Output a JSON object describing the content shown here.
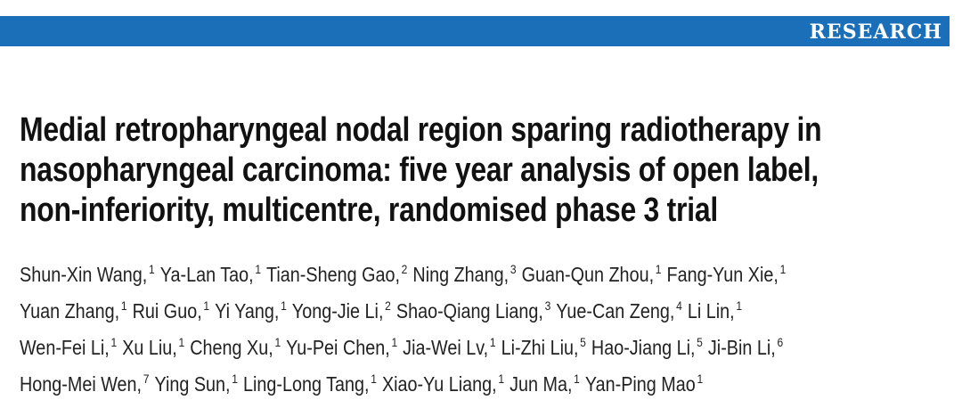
{
  "banner": "RESEARCH",
  "title_lines": [
    "Medial retropharyngeal nodal region sparing radiotherapy in",
    "nasopharyngeal carcinoma: five year analysis of open label,",
    "non-inferiority, multicentre, randomised phase 3 trial"
  ],
  "author_lines": [
    [
      {
        "name": "Shun-Xin Wang,",
        "aff": 1
      },
      {
        "name": "Ya-Lan Tao,",
        "aff": 1
      },
      {
        "name": "Tian-Sheng Gao,",
        "aff": 2
      },
      {
        "name": "Ning Zhang,",
        "aff": 3
      },
      {
        "name": "Guan-Qun Zhou,",
        "aff": 1
      },
      {
        "name": "Fang-Yun Xie,",
        "aff": 1
      }
    ],
    [
      {
        "name": "Yuan Zhang,",
        "aff": 1
      },
      {
        "name": "Rui Guo,",
        "aff": 1
      },
      {
        "name": "Yi Yang,",
        "aff": 1
      },
      {
        "name": "Yong-Jie Li,",
        "aff": 2
      },
      {
        "name": "Shao-Qiang Liang,",
        "aff": 3
      },
      {
        "name": "Yue-Can Zeng,",
        "aff": 4
      },
      {
        "name": "Li Lin,",
        "aff": 1
      }
    ],
    [
      {
        "name": "Wen-Fei Li,",
        "aff": 1
      },
      {
        "name": "Xu Liu,",
        "aff": 1
      },
      {
        "name": "Cheng Xu,",
        "aff": 1
      },
      {
        "name": "Yu-Pei Chen,",
        "aff": 1
      },
      {
        "name": "Jia-Wei Lv,",
        "aff": 1
      },
      {
        "name": "Li-Zhi Liu,",
        "aff": 5
      },
      {
        "name": "Hao-Jiang Li,",
        "aff": 5
      },
      {
        "name": "Ji-Bin Li,",
        "aff": 6
      }
    ],
    [
      {
        "name": "Hong-Mei Wen,",
        "aff": 7
      },
      {
        "name": "Ying Sun,",
        "aff": 1
      },
      {
        "name": "Ling-Long Tang,",
        "aff": 1
      },
      {
        "name": "Xiao-Yu Liang,",
        "aff": 1
      },
      {
        "name": "Jun Ma,",
        "aff": 1
      },
      {
        "name": "Yan-Ping Mao",
        "aff": 1
      }
    ]
  ]
}
